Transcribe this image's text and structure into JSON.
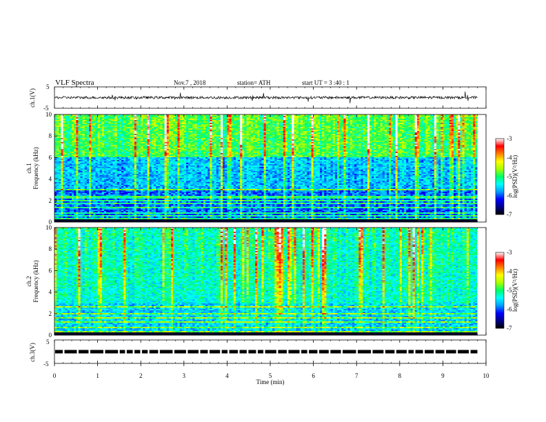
{
  "header": {
    "title": "VLF  Spectra",
    "date": "Nov.7  , 2018",
    "station": "station= ATH",
    "start_ut": "start  UT =   3  :40 : 1"
  },
  "colors": {
    "background": "#ffffff",
    "trace": "#000000",
    "spectrogram_low": "#00007f",
    "spectrogram_high": "#ff0000"
  },
  "colormap": [
    "#000000",
    "#00008c",
    "#0000ff",
    "#00a0ff",
    "#00ffff",
    "#00ff66",
    "#aaff00",
    "#ffff00",
    "#ff8000",
    "#ff0000",
    "#ffffff"
  ],
  "chart_data": [
    {
      "type": "line",
      "panel": "ch1-waveform",
      "ylabel": "ch.1(V)",
      "ylim": [
        -5,
        5
      ],
      "y_ticks": [
        "5",
        "-5"
      ],
      "xlim": [
        0,
        10
      ],
      "signal_level": 0,
      "signal_amplitude": 0.6,
      "signal_data_extent_min": 9.8
    },
    {
      "type": "heatmap",
      "panel": "ch1-spectrogram",
      "ylabel": "ch.1\nFrequency  (kHz)",
      "ylabel_lines": [
        "ch.1",
        "Frequency  (kHz)"
      ],
      "ylim": [
        0,
        10
      ],
      "y_ticks": [
        "10",
        "8",
        "6",
        "4",
        "2",
        "0"
      ],
      "xlim": [
        0,
        9.8
      ],
      "colorbar": {
        "label": "log(PSD)(V²/Hz)",
        "range": [
          -7,
          -3
        ],
        "ticks": [
          "-3",
          "-4",
          "-5",
          "-6",
          "-7"
        ]
      },
      "strong_bands_khz": [
        0.3,
        0.6,
        0.8,
        1.3,
        1.7,
        2.0,
        2.3,
        3.0
      ],
      "description_level": "background log PSD about -6.3 below 3 kHz, about -5.2 above 6 kHz"
    },
    {
      "type": "heatmap",
      "panel": "ch2-spectrogram",
      "ylabel": "ch.2\nFrequency  (kHz)",
      "ylabel_lines": [
        "ch.2",
        "Frequency  (kHz)"
      ],
      "ylim": [
        0,
        10
      ],
      "y_ticks": [
        "10",
        "8",
        "6",
        "4",
        "2",
        "0"
      ],
      "xlim": [
        0,
        9.8
      ],
      "colorbar": {
        "label": "log(PSD)(V²/Hz)",
        "range": [
          -7,
          -3
        ],
        "ticks": [
          "-3",
          "-4",
          "-5",
          "-6",
          "-7"
        ]
      },
      "strong_bands_khz": [
        0.3,
        0.7,
        1.2,
        1.6,
        2.0,
        2.6
      ],
      "description_level": "background log PSD about -5.5"
    },
    {
      "type": "line",
      "panel": "ch3-gps",
      "ylabel": "ch.3(V)",
      "ylim": [
        -5,
        5
      ],
      "y_ticks": [
        "5",
        "-5"
      ],
      "xlim": [
        0,
        10
      ],
      "signal_level": 0,
      "signal_data_extent_min": 9.8
    }
  ],
  "x_axis": {
    "label": "Time  (min)",
    "ticks": [
      "0",
      "1",
      "2",
      "3",
      "4",
      "5",
      "6",
      "7",
      "8",
      "9",
      "10"
    ],
    "range": [
      0,
      10
    ]
  }
}
